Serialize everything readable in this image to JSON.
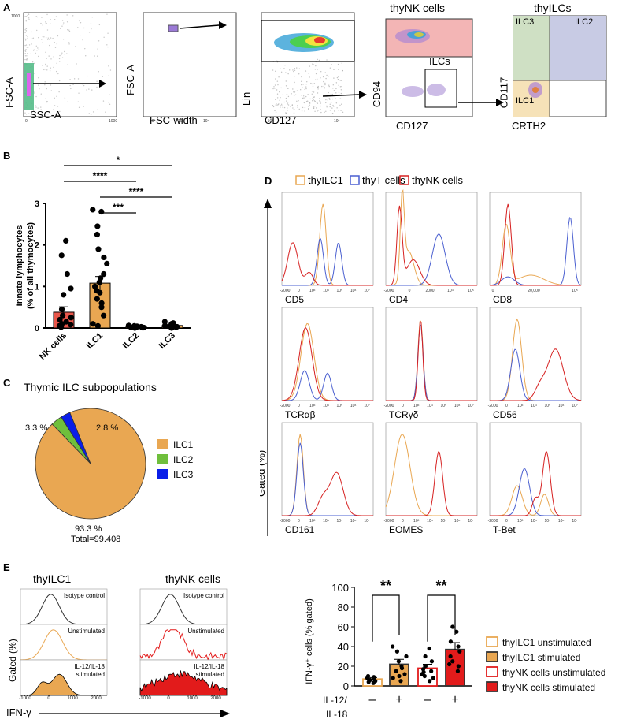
{
  "panels": {
    "A": "A",
    "B": "B",
    "C": "C",
    "D": "D",
    "E": "E"
  },
  "panel_a": {
    "plot1": {
      "xlabel": "SSC-A",
      "ylabel": "FSC-A"
    },
    "plot2": {
      "xlabel": "FSC-width",
      "ylabel": "FSC-A"
    },
    "plot3": {
      "xlabel": "CD127",
      "ylabel": "Lin"
    },
    "plot4": {
      "title": "thyNK cells",
      "gate": "ILCs",
      "xlabel": "CD127",
      "ylabel": "CD94"
    },
    "plot5": {
      "title": "thyILCs",
      "xlabel": "CRTH2",
      "ylabel": "CD117",
      "q_ilc3": "ILC3",
      "q_ilc2": "ILC2",
      "q_ilc1": "ILC1"
    }
  },
  "chart_data": [
    {
      "id": "B",
      "type": "bar",
      "ylabel_line1": "Innate lymphocytes",
      "ylabel_line2": "(% of all thymocytes)",
      "categories": [
        "NK cells",
        "ILC1",
        "ILC2",
        "ILC3"
      ],
      "values": [
        0.38,
        1.08,
        0.03,
        0.06
      ],
      "errors": [
        0.13,
        0.16,
        0.01,
        0.01
      ],
      "bar_colors": [
        "#e8564a",
        "#e9a752",
        "#e9a752",
        "#e9a752"
      ],
      "points": [
        [
          0.02,
          0.05,
          0.08,
          0.1,
          0.15,
          0.2,
          0.25,
          0.3,
          0.45,
          0.8,
          0.95,
          1.3,
          1.75,
          2.1
        ],
        [
          0.05,
          0.1,
          0.3,
          0.5,
          0.6,
          0.7,
          0.85,
          0.9,
          1.0,
          1.1,
          1.2,
          1.3,
          1.55,
          1.7,
          1.9,
          2.25,
          2.45,
          2.8,
          2.85
        ],
        [
          0.0,
          0.01,
          0.02,
          0.03,
          0.04,
          0.05,
          0.06,
          0.02,
          0.01
        ],
        [
          0.0,
          0.02,
          0.04,
          0.06,
          0.08,
          0.1,
          0.12,
          0.15,
          0.03
        ]
      ],
      "ylim": [
        0,
        3
      ],
      "yticks": [
        0,
        1,
        2,
        3
      ],
      "significance": [
        "***",
        "****",
        "****",
        "*"
      ]
    },
    {
      "id": "C",
      "type": "pie",
      "title": "Thymic ILC subpopulations",
      "labels": [
        "ILC1",
        "ILC2",
        "ILC3"
      ],
      "values": [
        93.3,
        3.3,
        2.8
      ],
      "value_labels": [
        "93.3 %",
        "3.3 %",
        "2.8 %"
      ],
      "colors": [
        "#e9a752",
        "#6fbf3c",
        "#0a1ee8"
      ],
      "total": "Total=99.408"
    },
    {
      "id": "E-right",
      "type": "bar",
      "ylabel": "IFN-γ⁺ cells (% gated)",
      "ylim": [
        0,
        100
      ],
      "yticks": [
        0,
        20,
        40,
        60,
        80,
        100
      ],
      "groups": [
        {
          "name": "thyILC1 unstimulated",
          "value": 7,
          "error": 1.5,
          "fill": "#ffffff",
          "stroke": "#e9a752",
          "points": [
            3,
            4,
            5,
            5,
            6,
            7,
            8,
            9,
            10
          ]
        },
        {
          "name": "thyILC1 stimulated",
          "value": 22,
          "error": 5,
          "fill": "#e9a752",
          "stroke": "#000000",
          "points": [
            5,
            8,
            10,
            12,
            15,
            18,
            20,
            25,
            30,
            35,
            40
          ]
        },
        {
          "name": "thyNK cells unstimulated",
          "value": 18,
          "error": 4,
          "fill": "#ffffff",
          "stroke": "#e21b1b",
          "points": [
            5,
            8,
            10,
            12,
            14,
            15,
            17,
            20,
            25,
            30,
            38
          ]
        },
        {
          "name": "thyNK cells stimulated",
          "value": 37,
          "error": 7,
          "fill": "#e21b1b",
          "stroke": "#000000",
          "points": [
            15,
            20,
            22,
            25,
            30,
            35,
            40,
            45,
            55,
            60
          ]
        }
      ],
      "sig_label": "**",
      "il_label_1": "IL-12/",
      "il_label_2": "IL-18",
      "treatments": [
        "–",
        "+",
        "–",
        "+"
      ]
    }
  ],
  "panel_d": {
    "legend": [
      "thyILC1",
      "thyT cells",
      "thyNK cells"
    ],
    "colors": {
      "ilc1": "#e9a752",
      "t": "#4a5fd0",
      "nk": "#d62020"
    },
    "ylabel": "Gated (%)",
    "markers": [
      "CD5",
      "CD4",
      "CD8",
      "TCRαβ",
      "TCRγδ",
      "CD56",
      "CD161",
      "EOMES",
      "T-Bet"
    ],
    "ticks_std": [
      "-2000",
      "0",
      "10³",
      "10⁴",
      "10⁵",
      "10⁶",
      "10⁷"
    ],
    "ticks_cd8": [
      "0",
      "20,000",
      "10⁵"
    ],
    "ticks_cd4": [
      "-2000",
      "0",
      "2000",
      "10⁴",
      "10⁵"
    ]
  },
  "panel_e_left": {
    "title_ilc1": "thyILC1",
    "title_nk": "thyNK cells",
    "row_labels": [
      "Isotype control",
      "Unstimulated",
      "IL-12/IL-18",
      "stimulated"
    ],
    "ylabel": "Gated (%)",
    "xlabel": "IFN-γ",
    "ticks": [
      "-1000",
      "0",
      "1000",
      "2000"
    ]
  }
}
